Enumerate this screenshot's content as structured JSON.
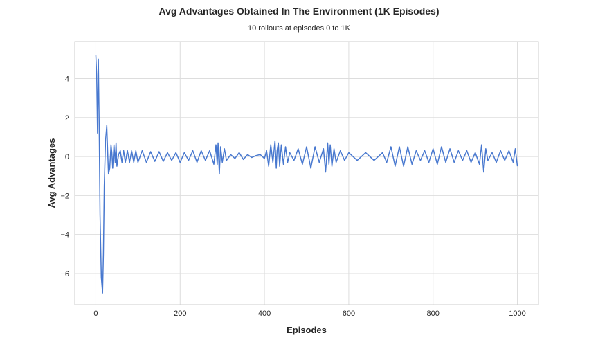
{
  "chart_data": {
    "type": "line",
    "title": "Avg Advantages Obtained In The Environment (1K Episodes)",
    "subtitle": "10 rollouts at episodes 0 to 1K",
    "xlabel": "Episodes",
    "ylabel": "Avg Advantages",
    "xlim": [
      -50,
      1050
    ],
    "ylim": [
      -7.6,
      5.9
    ],
    "xticks": [
      0,
      200,
      400,
      600,
      800,
      1000
    ],
    "yticks": [
      -6,
      -4,
      -2,
      0,
      2,
      4
    ],
    "ytick_labels": [
      "−6",
      "−4",
      "−2",
      "0",
      "2",
      "4"
    ],
    "grid": true,
    "color": "#4878cf",
    "series": [
      {
        "x": [
          0,
          2,
          4,
          6,
          8,
          10,
          13,
          16,
          18,
          20,
          23,
          26,
          28,
          30,
          33,
          36,
          38,
          40,
          43,
          46,
          48,
          50,
          54,
          58,
          62,
          66,
          70,
          75,
          80,
          85,
          90,
          95,
          100,
          110,
          120,
          130,
          140,
          150,
          160,
          170,
          180,
          190,
          200,
          210,
          220,
          230,
          240,
          250,
          260,
          270,
          280,
          285,
          288,
          290,
          293,
          296,
          300,
          305,
          310,
          320,
          330,
          340,
          350,
          360,
          370,
          380,
          390,
          400,
          405,
          410,
          415,
          420,
          425,
          428,
          430,
          433,
          436,
          440,
          445,
          450,
          455,
          460,
          470,
          480,
          490,
          500,
          510,
          520,
          530,
          540,
          545,
          550,
          553,
          556,
          560,
          565,
          570,
          580,
          590,
          600,
          620,
          640,
          660,
          680,
          690,
          700,
          710,
          720,
          730,
          740,
          750,
          760,
          770,
          780,
          790,
          800,
          810,
          820,
          830,
          840,
          850,
          860,
          870,
          880,
          890,
          900,
          910,
          915,
          920,
          925,
          930,
          940,
          950,
          960,
          970,
          980,
          990,
          995,
          1000
        ],
        "y": [
          5.2,
          4.2,
          1.2,
          5.0,
          1.5,
          -3.0,
          -6.2,
          -7.0,
          -5.0,
          -1.5,
          0.8,
          1.6,
          0.3,
          -0.9,
          -0.6,
          0.6,
          0.2,
          -0.6,
          0.6,
          -0.3,
          0.7,
          -0.5,
          0.1,
          0.3,
          -0.3,
          0.3,
          -0.3,
          0.3,
          -0.3,
          0.3,
          -0.3,
          0.3,
          -0.3,
          0.3,
          -0.3,
          0.25,
          -0.25,
          0.25,
          -0.25,
          0.2,
          -0.2,
          0.2,
          -0.3,
          0.2,
          -0.2,
          0.3,
          -0.3,
          0.3,
          -0.2,
          0.3,
          -0.4,
          0.6,
          -0.4,
          0.7,
          -0.9,
          0.5,
          -0.3,
          0.4,
          -0.2,
          0.1,
          -0.1,
          0.2,
          -0.15,
          0.1,
          -0.05,
          0.05,
          0.1,
          -0.1,
          0.3,
          -0.5,
          0.6,
          -0.3,
          0.8,
          -0.6,
          0.3,
          0.7,
          -0.5,
          0.6,
          -0.4,
          0.5,
          -0.3,
          0.2,
          -0.2,
          0.4,
          -0.4,
          0.5,
          -0.6,
          0.5,
          -0.3,
          0.4,
          -0.8,
          0.7,
          -0.4,
          0.6,
          -0.5,
          0.4,
          -0.3,
          0.3,
          -0.2,
          0.2,
          -0.2,
          0.2,
          -0.2,
          0.2,
          -0.3,
          0.5,
          -0.5,
          0.5,
          -0.5,
          0.5,
          -0.4,
          0.3,
          -0.2,
          0.3,
          -0.3,
          0.4,
          -0.4,
          0.5,
          -0.3,
          0.4,
          -0.3,
          0.3,
          -0.2,
          0.3,
          -0.3,
          0.2,
          -0.4,
          0.6,
          -0.8,
          0.4,
          -0.2,
          0.2,
          -0.3,
          0.3,
          -0.2,
          0.3,
          -0.3,
          0.4,
          -0.5
        ]
      }
    ]
  }
}
